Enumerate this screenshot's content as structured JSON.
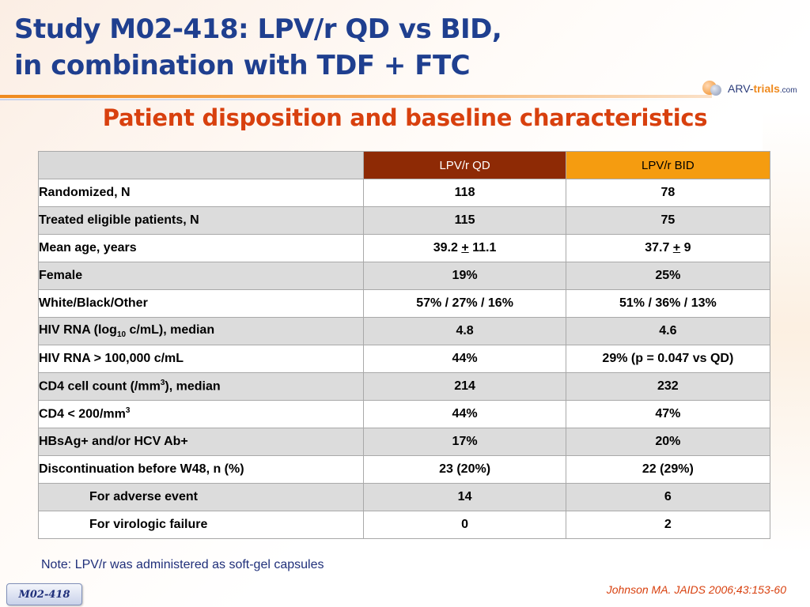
{
  "slide": {
    "title_line1": "Study M02-418: LPV/r QD vs BID,",
    "title_line2": "in combination with TDF + FTC",
    "subtitle": "Patient disposition and baseline characteristics",
    "logo": {
      "part1": "ARV-",
      "part2": "trials",
      "part3": ".com"
    },
    "note": "Note: LPV/r was administered as soft-gel capsules",
    "citation": "Johnson MA. JAIDS 2006;43:153-60",
    "badge": "M02-418",
    "colors": {
      "title": "#1f3f8f",
      "subtitle": "#d8400e",
      "header_qd": "#8e2a05",
      "header_bid": "#f59c10",
      "row_shade": "#dcdcdc"
    }
  },
  "table": {
    "headers": {
      "label": "",
      "qd": "LPV/r QD",
      "bid": "LPV/r BID"
    },
    "rows": [
      {
        "label": "Randomized, N",
        "qd": "118",
        "bid": "78"
      },
      {
        "label": "Treated eligible patients, N",
        "qd": "115",
        "bid": "75"
      },
      {
        "label": "Mean age, years",
        "qd_a": "39.2",
        "qd_pm": "+",
        "qd_b": "11.1",
        "bid_a": "37.7",
        "bid_pm": "+",
        "bid_b": "9"
      },
      {
        "label": "Female",
        "qd": "19%",
        "bid": "25%"
      },
      {
        "label": "White/Black/Other",
        "qd": "57% / 27% / 16%",
        "bid": "51% / 36% / 13%"
      },
      {
        "label_a": "HIV RNA (log",
        "label_sub": "10",
        "label_b": " c/mL), median",
        "qd": "4.8",
        "bid": "4.6"
      },
      {
        "label": "HIV RNA > 100,000 c/mL",
        "qd": "44%",
        "bid": "29% (p = 0.047 vs QD)"
      },
      {
        "label_a": "CD4 cell count (/mm",
        "label_sup": "3",
        "label_b": "), median",
        "qd": "214",
        "bid": "232"
      },
      {
        "label_a": "CD4 < 200/mm",
        "label_sup": "3",
        "label_b": "",
        "qd": "44%",
        "bid": "47%"
      },
      {
        "label": "HBsAg+ and/or HCV Ab+",
        "qd": "17%",
        "bid": "20%"
      },
      {
        "label": "Discontinuation before W48, n (%)",
        "qd": "23 (20%)",
        "bid": "22 (29%)"
      },
      {
        "label": "For adverse event",
        "qd": "14",
        "bid": "6"
      },
      {
        "label": "For virologic failure",
        "qd": "0",
        "bid": "2"
      }
    ]
  }
}
